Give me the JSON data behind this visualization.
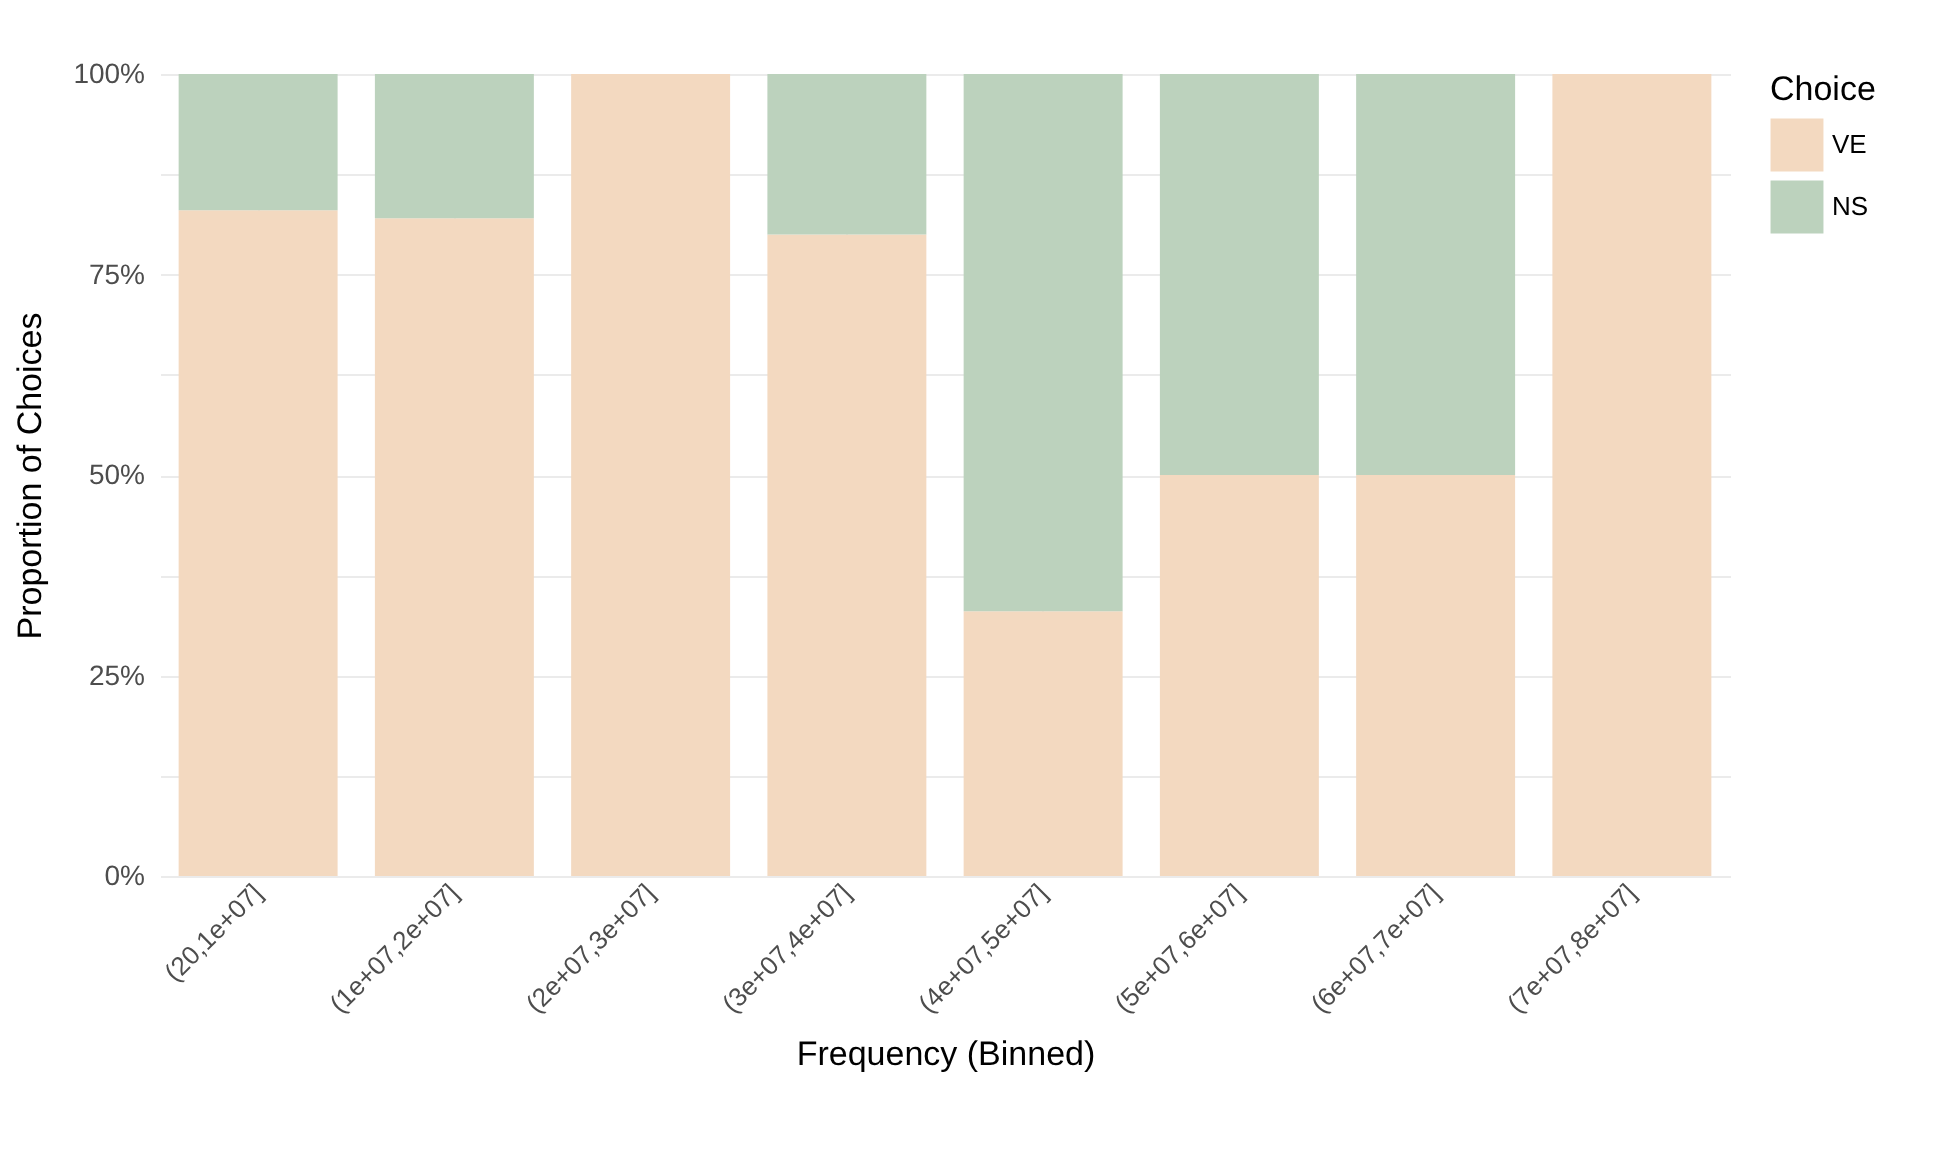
{
  "chart_data": {
    "type": "bar",
    "stacked": true,
    "xlabel": "Frequency (Binned)",
    "ylabel": "Proportion of Choices",
    "legend_title": "Choice",
    "legend": "right",
    "grid": true,
    "categories": [
      "(20,1e+07]",
      "(1e+07,2e+07]",
      "(2e+07,3e+07]",
      "(3e+07,4e+07]",
      "(4e+07,5e+07]",
      "(5e+07,6e+07]",
      "(6e+07,7e+07]",
      "(7e+07,8e+07]"
    ],
    "series": [
      {
        "name": "VE",
        "color": "#f3d9c0",
        "values": [
          0.83,
          0.82,
          1,
          0.8,
          0.33,
          0.5,
          0.5,
          1
        ]
      },
      {
        "name": "NS",
        "color": "#bcd2bd",
        "values": [
          0.17,
          0.18,
          0,
          0.2,
          0.67,
          0.5,
          0.5,
          0
        ]
      }
    ],
    "ylim": [
      0,
      1
    ],
    "yticks": [
      {
        "value": 0,
        "label": "0%"
      },
      {
        "value": 0.125,
        "label": null
      },
      {
        "value": 0.25,
        "label": "25%"
      },
      {
        "value": 0.375,
        "label": null
      },
      {
        "value": 0.5,
        "label": "50%"
      },
      {
        "value": 0.625,
        "label": null
      },
      {
        "value": 0.75,
        "label": "75%"
      },
      {
        "value": 0.875,
        "label": null
      },
      {
        "value": 1,
        "label": "100%"
      }
    ]
  }
}
